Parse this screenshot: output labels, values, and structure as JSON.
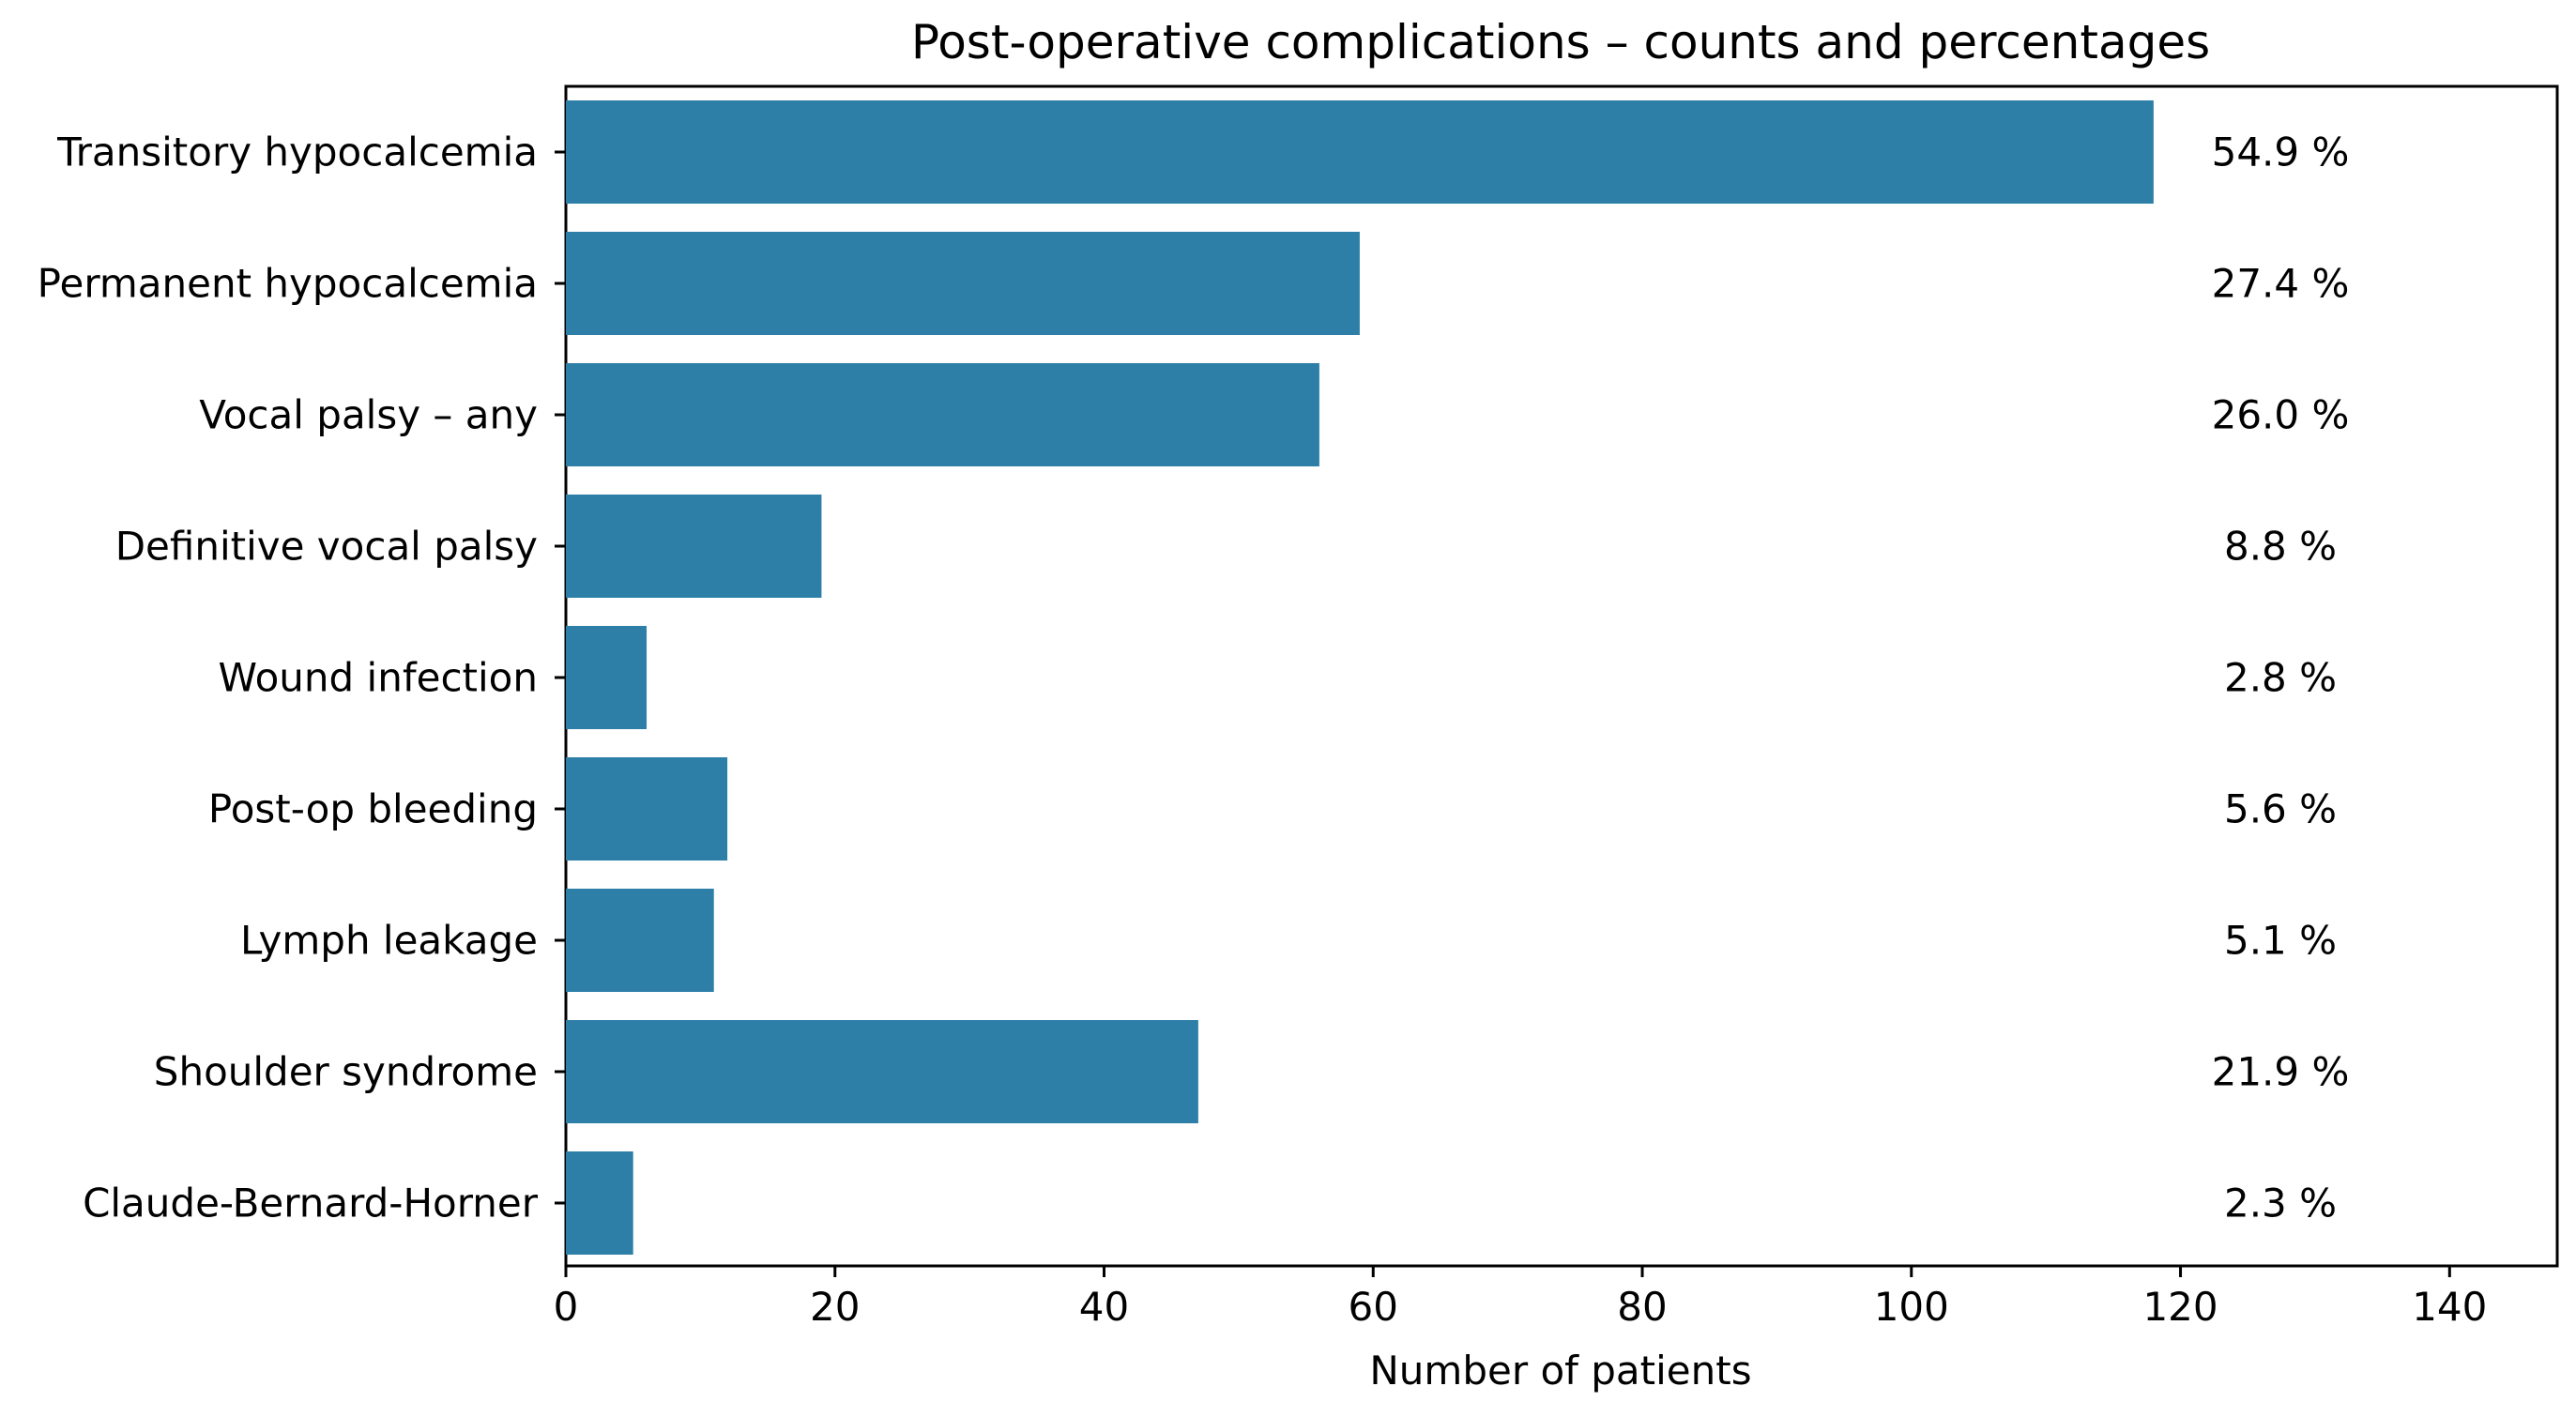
{
  "chart_data": {
    "type": "bar",
    "orientation": "horizontal",
    "title": "Post-operative complications – counts and percentages",
    "xlabel": "Number of patients",
    "ylabel": "",
    "xlim": [
      0,
      148
    ],
    "x_ticks": [
      0,
      20,
      40,
      60,
      80,
      100,
      120,
      140
    ],
    "grid": false,
    "bar_color": "#2e7fa8",
    "categories": [
      "Transitory hypocalcemia",
      "Permanent hypocalcemia",
      "Vocal palsy – any",
      "Definitive vocal palsy",
      "Wound infection",
      "Post-op bleeding",
      "Lymph leakage",
      "Shoulder syndrome",
      "Claude-Bernard-Horner"
    ],
    "values": [
      118,
      59,
      56,
      19,
      6,
      12,
      11,
      47,
      5
    ],
    "percent_labels": [
      "54.9 %",
      "27.4 %",
      "26.0 %",
      "8.8 %",
      "2.8 %",
      "5.6 %",
      "5.1 %",
      "21.9 %",
      "2.3 %"
    ]
  }
}
